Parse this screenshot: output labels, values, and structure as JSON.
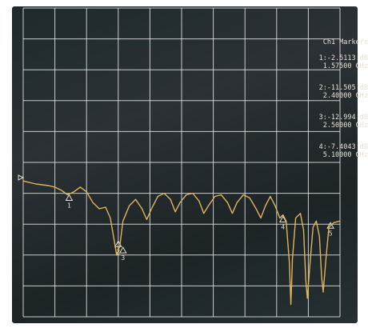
{
  "chart_data": {
    "type": "line",
    "title": "",
    "xlabel": "",
    "ylabel": "",
    "grid": true,
    "x_divisions": 10,
    "y_divisions": 10,
    "ref_level_div": 2.6,
    "colors": {
      "trace": "#e0b45a",
      "grid": "#e8e8e8",
      "text": "#e6e1d2"
    },
    "series": [
      {
        "values": [
          [
            0.0,
            3.0
          ],
          [
            0.4,
            2.9
          ],
          [
            0.8,
            2.85
          ],
          [
            1.0,
            2.8
          ],
          [
            1.2,
            2.7
          ],
          [
            1.4,
            2.55
          ],
          [
            1.6,
            2.65
          ],
          [
            1.8,
            2.8
          ],
          [
            2.0,
            2.65
          ],
          [
            2.2,
            2.3
          ],
          [
            2.4,
            2.1
          ],
          [
            2.6,
            2.15
          ],
          [
            2.75,
            1.8
          ],
          [
            2.85,
            1.2
          ],
          [
            2.95,
            0.6
          ],
          [
            3.05,
            0.9
          ],
          [
            3.15,
            1.7
          ],
          [
            3.35,
            2.2
          ],
          [
            3.55,
            2.4
          ],
          [
            3.75,
            2.1
          ],
          [
            3.9,
            1.75
          ],
          [
            4.05,
            2.1
          ],
          [
            4.25,
            2.5
          ],
          [
            4.45,
            2.6
          ],
          [
            4.65,
            2.4
          ],
          [
            4.8,
            2.0
          ],
          [
            4.95,
            2.3
          ],
          [
            5.15,
            2.55
          ],
          [
            5.35,
            2.6
          ],
          [
            5.55,
            2.35
          ],
          [
            5.7,
            1.95
          ],
          [
            5.85,
            2.2
          ],
          [
            6.05,
            2.5
          ],
          [
            6.25,
            2.55
          ],
          [
            6.45,
            2.3
          ],
          [
            6.6,
            1.95
          ],
          [
            6.75,
            2.3
          ],
          [
            6.95,
            2.55
          ],
          [
            7.15,
            2.45
          ],
          [
            7.35,
            2.1
          ],
          [
            7.5,
            1.8
          ],
          [
            7.65,
            2.2
          ],
          [
            7.8,
            2.5
          ],
          [
            7.95,
            2.2
          ],
          [
            8.1,
            1.8
          ],
          [
            8.2,
            1.9
          ],
          [
            8.3,
            1.7
          ],
          [
            8.4,
            0.4
          ],
          [
            8.45,
            -1.0
          ],
          [
            8.5,
            0.5
          ],
          [
            8.6,
            1.8
          ],
          [
            8.75,
            1.95
          ],
          [
            8.85,
            1.4
          ],
          [
            8.92,
            -0.2
          ],
          [
            8.97,
            -0.8
          ],
          [
            9.05,
            0.3
          ],
          [
            9.15,
            1.5
          ],
          [
            9.25,
            1.7
          ],
          [
            9.35,
            1.2
          ],
          [
            9.42,
            -0.1
          ],
          [
            9.47,
            -0.6
          ],
          [
            9.55,
            0.4
          ],
          [
            9.65,
            1.5
          ],
          [
            9.8,
            1.65
          ],
          [
            10.0,
            1.7
          ]
        ]
      }
    ],
    "markers": [
      {
        "label": "1",
        "x": 1.45,
        "y": 2.55
      },
      {
        "label": "2",
        "x": 3.0,
        "y": 1.05
      },
      {
        "label": "3",
        "x": 3.15,
        "y": 0.85
      },
      {
        "label": "4",
        "x": 8.2,
        "y": 1.85
      },
      {
        "label": "5",
        "x": 9.7,
        "y": 1.65
      }
    ],
    "marker_table": {
      "title": "Ch1 Markers",
      "entries": [
        {
          "line1": "1:-2.5113 dB",
          "line2": "1.57500 GHz"
        },
        {
          "line1": "2:-11.505 dB",
          "line2": "2.40000 GHz"
        },
        {
          "line1": "3:-12.994 dB",
          "line2": "2.50000 GHz"
        },
        {
          "line1": "4:-7.4043 dB",
          "line2": "5.10000 GHz"
        }
      ]
    }
  }
}
